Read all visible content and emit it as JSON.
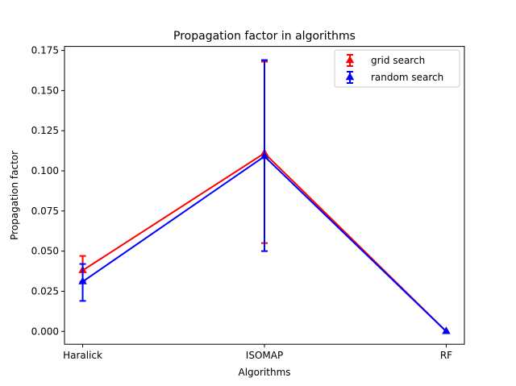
{
  "chart_data": {
    "type": "line",
    "title": "Propagation factor in algorithms",
    "xlabel": "Algorithms",
    "ylabel": "Propagation factor",
    "categories": [
      "Haralick",
      "ISOMAP",
      "RF"
    ],
    "ylim": [
      -0.008,
      0.1775
    ],
    "yticks": [
      0.0,
      0.025,
      0.05,
      0.075,
      0.1,
      0.125,
      0.15,
      0.175
    ],
    "ytick_labels": [
      "0.000",
      "0.025",
      "0.050",
      "0.075",
      "0.100",
      "0.125",
      "0.150",
      "0.175"
    ],
    "grid": false,
    "legend_position": "top-right",
    "series": [
      {
        "name": "grid search",
        "color": "#ff0000",
        "marker": "triangle-up",
        "values": [
          0.038,
          0.111,
          0.0
        ],
        "err_low": [
          0.031,
          0.055,
          0.0
        ],
        "err_high": [
          0.047,
          0.168,
          0.0
        ]
      },
      {
        "name": "random search",
        "color": "#0000ff",
        "marker": "triangle-up",
        "values": [
          0.031,
          0.109,
          0.0
        ],
        "err_low": [
          0.019,
          0.05,
          0.0
        ],
        "err_high": [
          0.042,
          0.169,
          0.0
        ]
      }
    ]
  }
}
